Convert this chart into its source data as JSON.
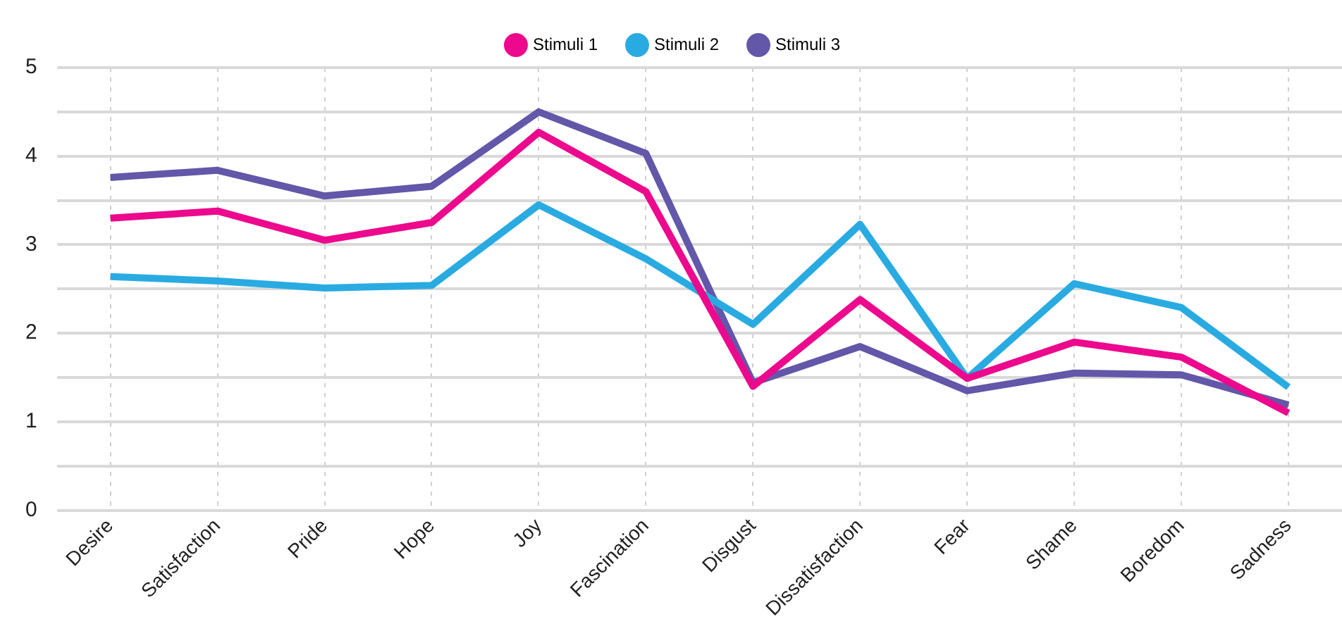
{
  "chart_data": {
    "type": "line",
    "categories": [
      "Desire",
      "Satisfaction",
      "Pride",
      "Hope",
      "Joy",
      "Fascination",
      "Disgust",
      "Dissatisfaction",
      "Fear",
      "Shame",
      "Boredom",
      "Sadness"
    ],
    "series": [
      {
        "name": "Stimuli 1",
        "color": "#ec098d",
        "values": [
          3.3,
          3.38,
          3.05,
          3.25,
          4.27,
          3.6,
          1.4,
          2.38,
          1.49,
          1.9,
          1.73,
          1.1
        ]
      },
      {
        "name": "Stimuli 2",
        "color": "#29abe2",
        "values": [
          2.64,
          2.59,
          2.51,
          2.54,
          3.45,
          2.84,
          2.1,
          3.23,
          1.49,
          2.56,
          2.29,
          1.39
        ]
      },
      {
        "name": "Stimuli 3",
        "color": "#6257a8",
        "values": [
          3.76,
          3.84,
          3.55,
          3.66,
          4.5,
          4.03,
          1.44,
          1.85,
          1.35,
          1.55,
          1.53,
          1.19
        ]
      }
    ],
    "ylim": [
      0,
      5
    ],
    "yticks": [
      0,
      {
        "value": 0.5,
        "label": null
      },
      1,
      {
        "value": 1.5,
        "label": null
      },
      2,
      {
        "value": 2.5,
        "label": null
      },
      3,
      {
        "value": 3.5,
        "label": null
      },
      4,
      {
        "value": 4.5,
        "label": null
      },
      5
    ],
    "grid": true,
    "legend": "top",
    "marker": "none",
    "line_style": "solid"
  }
}
